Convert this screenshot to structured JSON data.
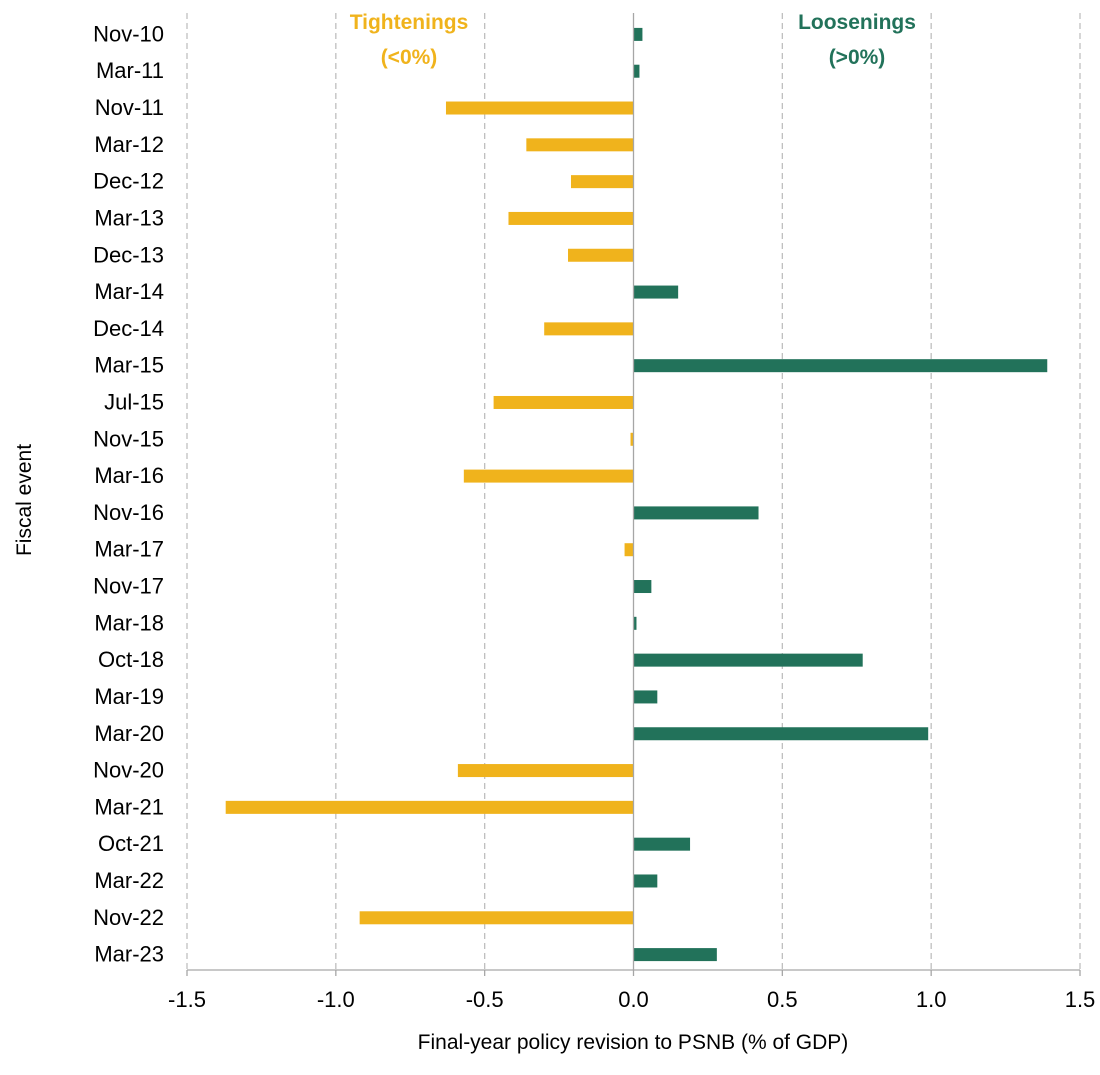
{
  "chart_data": {
    "type": "bar",
    "orientation": "horizontal",
    "categories": [
      "Nov-10",
      "Mar-11",
      "Nov-11",
      "Mar-12",
      "Dec-12",
      "Mar-13",
      "Dec-13",
      "Mar-14",
      "Dec-14",
      "Mar-15",
      "Jul-15",
      "Nov-15",
      "Mar-16",
      "Nov-16",
      "Mar-17",
      "Nov-17",
      "Mar-18",
      "Oct-18",
      "Mar-19",
      "Mar-20",
      "Nov-20",
      "Mar-21",
      "Oct-21",
      "Mar-22",
      "Nov-22",
      "Mar-23"
    ],
    "values": [
      0.03,
      0.02,
      -0.63,
      -0.36,
      -0.21,
      -0.42,
      -0.22,
      0.15,
      -0.3,
      1.39,
      -0.47,
      -0.01,
      -0.57,
      0.42,
      -0.03,
      0.06,
      0.01,
      0.77,
      0.08,
      0.99,
      -0.59,
      -1.37,
      0.19,
      0.08,
      -0.92,
      0.28
    ],
    "xlabel": "Final-year policy revision to PSNB (% of GDP)",
    "ylabel": "Fiscal event",
    "xlim": [
      -1.5,
      1.5
    ],
    "xticks": [
      "-1.5",
      "-1.0",
      "-0.5",
      "0.0",
      "0.5",
      "1.0",
      "1.5"
    ],
    "grid": "vertical dashed",
    "colors": {
      "negative": "#F0B31C",
      "positive": "#22725A",
      "grid": "#BFBFBF",
      "axis": "#A6A6A6"
    },
    "annotations": {
      "tightenings": {
        "line1": "Tightenings",
        "line2": "(<0%)"
      },
      "loosenings": {
        "line1": "Loosenings",
        "line2": "(>0%)"
      }
    }
  }
}
